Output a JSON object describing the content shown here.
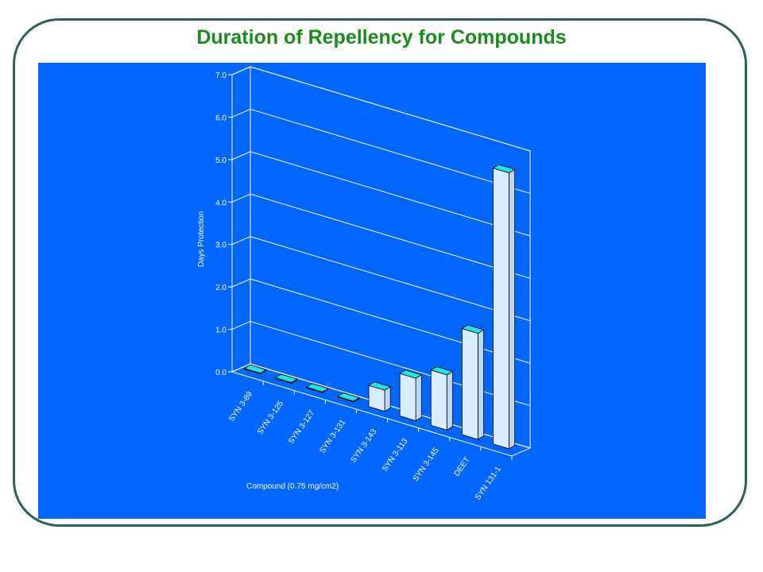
{
  "title": "Duration of Repellency for Compounds",
  "colors": {
    "background": "#0066ff",
    "bar_front": "#d8ecff",
    "bar_top": "#1ee6e6",
    "title": "#1a8c1a",
    "frame": "#2f5f5a",
    "grid": "#ffffff"
  },
  "chart_data": {
    "type": "bar",
    "title": "Duration of Repellency for Compounds",
    "xlabel": "Compound (0.75 mg/cm2)",
    "ylabel": "Days Protection",
    "categories": [
      "SYN 3-89",
      "SYN 3-125",
      "SYN 3-127",
      "SYN 3-131",
      "SYN 3-143",
      "SYN 3-113",
      "SYN 3-145",
      "DEET",
      "SYN 131-1"
    ],
    "values": [
      0,
      0,
      0,
      0,
      0.5,
      1.0,
      1.3,
      2.5,
      6.5
    ],
    "ylim": [
      0,
      7
    ],
    "yticks": [
      "0.0",
      "1.0",
      "2.0",
      "3.0",
      "4.0",
      "5.0",
      "6.0",
      "7.0"
    ],
    "grid": true,
    "style": "3d"
  }
}
